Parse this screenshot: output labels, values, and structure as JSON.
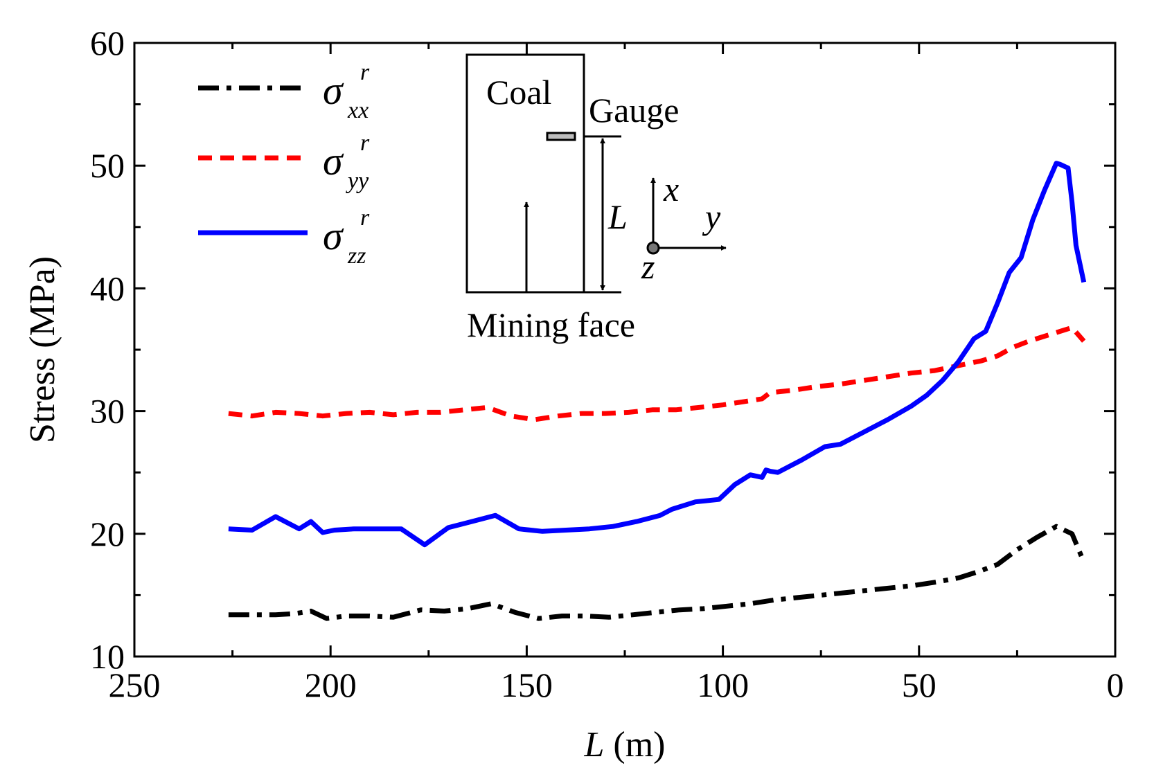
{
  "chart_data": {
    "type": "line",
    "xlabel": {
      "italic": "L",
      "rest": " (m)"
    },
    "ylabel": "Stress (MPa)",
    "xlim": [
      250,
      0
    ],
    "ylim": [
      10,
      60
    ],
    "xticks": [
      250,
      200,
      150,
      100,
      50,
      0
    ],
    "yticks": [
      10,
      20,
      30,
      40,
      50,
      60
    ],
    "xtick_labels": [
      "250",
      "200",
      "150",
      "100",
      "50",
      "0"
    ],
    "ytick_labels": [
      "10",
      "20",
      "30",
      "40",
      "50",
      "60"
    ],
    "legend_position": "top-left",
    "series": [
      {
        "name": "sigma_xx^r",
        "legend": {
          "symbol": "σ",
          "sub": "xx",
          "sup": "r"
        },
        "color": "#000000",
        "style": "dash-dot",
        "x": [
          226,
          220,
          214,
          209,
          205,
          201,
          196,
          190,
          184,
          177,
          171,
          165,
          159,
          153,
          147,
          141,
          135,
          129,
          123,
          117,
          111,
          105,
          99,
          93,
          87,
          81,
          75,
          69,
          63,
          57,
          51,
          45,
          40,
          35,
          30,
          25,
          20,
          15,
          11,
          8
        ],
        "y": [
          13.4,
          13.4,
          13.4,
          13.5,
          13.7,
          13.1,
          13.3,
          13.3,
          13.2,
          13.8,
          13.7,
          13.9,
          14.3,
          13.6,
          13.1,
          13.3,
          13.3,
          13.2,
          13.4,
          13.6,
          13.8,
          13.9,
          14.1,
          14.3,
          14.6,
          14.8,
          15.0,
          15.2,
          15.4,
          15.6,
          15.8,
          16.1,
          16.4,
          16.9,
          17.5,
          18.7,
          19.7,
          20.6,
          20.0,
          17.7
        ]
      },
      {
        "name": "sigma_yy^r",
        "legend": {
          "symbol": "σ",
          "sub": "yy",
          "sup": "r"
        },
        "color": "#ff0000",
        "style": "dashed",
        "x": [
          226,
          220,
          214,
          208,
          202,
          196,
          190,
          184,
          178,
          172,
          166,
          160,
          154,
          148,
          142,
          136,
          130,
          124,
          118,
          112,
          106,
          100,
          94,
          90,
          88,
          82,
          76,
          70,
          64,
          58,
          52,
          46,
          40,
          34,
          30,
          26,
          22,
          18,
          14,
          11,
          8
        ],
        "y": [
          29.8,
          29.6,
          29.9,
          29.8,
          29.6,
          29.8,
          29.9,
          29.7,
          29.9,
          29.9,
          30.1,
          30.3,
          29.6,
          29.3,
          29.6,
          29.8,
          29.8,
          29.9,
          30.1,
          30.1,
          30.3,
          30.5,
          30.8,
          31.0,
          31.5,
          31.7,
          32.0,
          32.2,
          32.5,
          32.8,
          33.1,
          33.3,
          33.7,
          34.1,
          34.5,
          35.2,
          35.7,
          36.1,
          36.5,
          36.8,
          35.7
        ]
      },
      {
        "name": "sigma_zz^r",
        "legend": {
          "symbol": "σ",
          "sub": "zz",
          "sup": "r"
        },
        "color": "#0000ff",
        "style": "solid",
        "x": [
          226,
          220,
          214,
          208,
          205,
          202,
          199,
          194,
          188,
          182,
          176,
          170,
          164,
          158,
          152,
          146,
          140,
          134,
          128,
          122,
          116,
          113,
          107,
          101,
          97,
          93,
          90,
          89,
          88,
          86,
          80,
          74,
          70,
          64,
          58,
          52,
          48,
          44,
          40,
          36,
          33,
          30,
          27,
          24,
          21,
          18,
          15,
          14,
          12,
          11,
          10,
          8
        ],
        "y": [
          20.4,
          20.3,
          21.4,
          20.4,
          21.0,
          20.1,
          20.3,
          20.4,
          20.4,
          20.4,
          19.1,
          20.5,
          21.0,
          21.5,
          20.4,
          20.2,
          20.3,
          20.4,
          20.6,
          21.0,
          21.5,
          22.0,
          22.6,
          22.8,
          24.0,
          24.8,
          24.6,
          25.2,
          25.1,
          25.0,
          26.0,
          27.1,
          27.3,
          28.3,
          29.3,
          30.4,
          31.3,
          32.5,
          34.0,
          35.9,
          36.5,
          38.8,
          41.3,
          42.5,
          45.6,
          48.0,
          50.2,
          50.1,
          49.8,
          47.0,
          43.5,
          40.5
        ]
      }
    ],
    "inset": {
      "coal_label": "Coal",
      "gauge_label": "Gauge",
      "mining_face_label": "Mining face",
      "distance_label": "L",
      "axis_x": "x",
      "axis_y": "y",
      "axis_z": "z"
    }
  }
}
